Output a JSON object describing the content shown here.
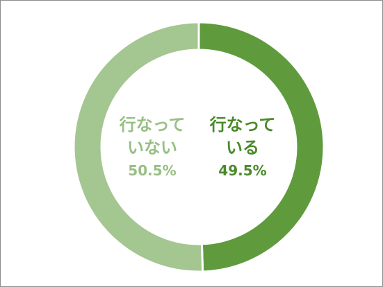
{
  "chart_data": {
    "type": "donut",
    "categories": [
      "行なっている",
      "行なっていない"
    ],
    "values": [
      49.5,
      50.5
    ],
    "value_labels": [
      "49.5%",
      "50.5%"
    ],
    "colors": [
      "#5f9b3d",
      "#a4c691"
    ],
    "label_colors": [
      "#4a8a2a",
      "#98bf84"
    ]
  }
}
